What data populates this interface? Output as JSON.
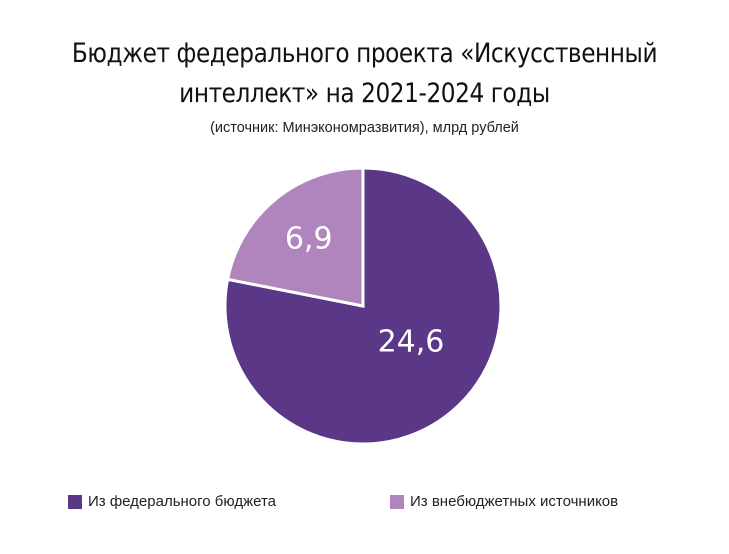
{
  "chart_data": {
    "type": "pie",
    "title_lines": [
      "Бюджет федерального проекта «Искусственный",
      "интеллект» на 2021-2024 годы"
    ],
    "subtitle": "(источник: Минэкономразвития), млрд рублей",
    "slices": [
      {
        "name": "Из федерального бюджета",
        "value": 24.6,
        "label": "24,6",
        "color": "#5a3787"
      },
      {
        "name": "Из внебюджетных источников",
        "value": 6.9,
        "label": "6,9",
        "color": "#b084bd"
      }
    ],
    "legend_position": "bottom"
  }
}
